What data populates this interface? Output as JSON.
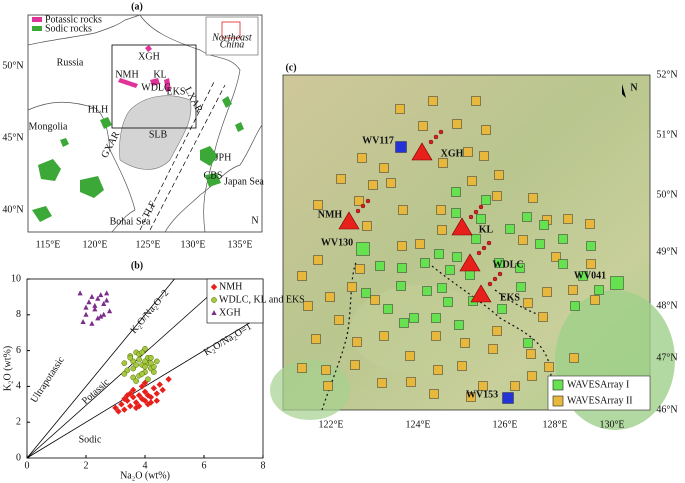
{
  "panel_a": {
    "label": "(a)",
    "legend": [
      "Potassic rocks",
      "Sodic rocks"
    ],
    "inset": [
      "Northeast",
      "China"
    ],
    "places": [
      "Russia",
      "Mongolia",
      "XGH",
      "NMH",
      "KL",
      "WDLC",
      "EKS",
      "HLH",
      "GXAR",
      "LXAR",
      "SLB",
      "JPH",
      "CBS",
      "TLF",
      "Japan Sea",
      "Bohai Sea",
      "N"
    ],
    "lon_labels": [
      "115°E",
      "120°E",
      "125°E",
      "130°E",
      "135°E"
    ],
    "lat_labels": [
      "50°N",
      "45°N",
      "40°N"
    ]
  },
  "chart_data": {
    "type": "scatter",
    "title": "(b)",
    "x_label": "Na₂O (wt%)",
    "y_label": "K₂O (wt%)",
    "xlim": [
      0,
      8
    ],
    "ylim": [
      0,
      10
    ],
    "xticks": [
      0,
      2,
      4,
      6,
      8
    ],
    "yticks": [
      0,
      2,
      4,
      6,
      8,
      10
    ],
    "annotations": [
      "K₂O/Na₂O=2",
      "K₂O/Na₂O=1",
      "Ultrapotassic",
      "Potassic",
      "Sodic"
    ],
    "legend": "upper right",
    "series": [
      {
        "name": "NMH",
        "color": "#e8201c",
        "marker": "diamond",
        "x": [
          3.0,
          3.2,
          3.3,
          3.4,
          3.5,
          3.6,
          3.7,
          3.8,
          3.9,
          4.0,
          4.1,
          4.2,
          4.3,
          4.4,
          4.6,
          3.1,
          3.5,
          3.8,
          4.0,
          4.2,
          3.6,
          3.9,
          4.1,
          4.4,
          3.3,
          3.7,
          4.8,
          4.5,
          3.4,
          4.0
        ],
        "y": [
          2.8,
          3.0,
          2.7,
          3.2,
          2.9,
          3.4,
          3.1,
          3.5,
          3.3,
          3.7,
          3.0,
          3.4,
          3.9,
          3.6,
          3.8,
          2.6,
          3.6,
          2.9,
          4.2,
          3.1,
          3.8,
          4.0,
          3.5,
          3.2,
          3.3,
          2.8,
          4.4,
          4.1,
          3.5,
          3.2
        ]
      },
      {
        "name": "WDLC, KL and EKS",
        "color": "#a4c93c",
        "marker": "circle",
        "x": [
          3.3,
          3.5,
          3.6,
          3.7,
          3.8,
          3.9,
          4.0,
          4.1,
          4.2,
          4.3,
          3.4,
          3.6,
          3.8,
          4.0,
          4.2,
          3.5,
          3.7,
          3.9,
          4.1,
          4.3,
          3.6,
          3.8,
          4.0,
          4.2,
          3.9,
          4.1,
          3.7,
          4.0,
          3.3,
          4.4
        ],
        "y": [
          5.3,
          5.7,
          5.0,
          5.9,
          5.5,
          5.2,
          6.1,
          5.6,
          5.0,
          4.8,
          4.9,
          5.4,
          4.6,
          4.8,
          5.6,
          5.6,
          5.2,
          4.7,
          5.3,
          5.1,
          4.5,
          5.8,
          5.4,
          5.3,
          5.9,
          4.4,
          4.3,
          5.1,
          4.7,
          5.4
        ]
      },
      {
        "name": "XGH",
        "color": "#7b2d8b",
        "marker": "triangle",
        "x": [
          1.8,
          2.0,
          2.1,
          2.2,
          2.3,
          2.4,
          2.5,
          2.6,
          2.7,
          2.8,
          1.9,
          2.2,
          2.4,
          2.6,
          2.3,
          2.5,
          2.0,
          2.7
        ],
        "y": [
          9.2,
          8.0,
          8.7,
          9.0,
          8.3,
          7.8,
          9.1,
          8.6,
          9.2,
          8.2,
          7.6,
          7.5,
          8.9,
          8.0,
          8.5,
          7.9,
          8.4,
          8.8
        ]
      }
    ]
  },
  "panel_c": {
    "label": "(c)",
    "north": "N",
    "stations": [
      "WV117",
      "WV130",
      "WV041",
      "WV153"
    ],
    "volcanoes": [
      "XGH",
      "NMH",
      "KL",
      "WDLC",
      "EKS"
    ],
    "legend": [
      "WAVESArray I",
      "WAVESArray II"
    ],
    "lon_labels": [
      "122°E",
      "124°E",
      "126°E",
      "128°E",
      "130°E"
    ],
    "lat_labels": [
      "52°N",
      "51°N",
      "50°N",
      "49°N",
      "48°N",
      "47°N",
      "46°N"
    ]
  }
}
